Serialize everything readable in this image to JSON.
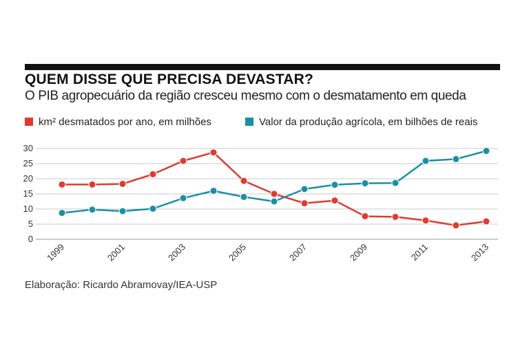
{
  "header": {
    "title": "QUEM DISSE QUE PRECISA DEVASTAR?",
    "subtitle": "O PIB agropecuário da região cresceu mesmo com o desmatamento em queda"
  },
  "legend": [
    {
      "label": "km² desmatados por ano, em milhões",
      "color": "#e03a30"
    },
    {
      "label": "Valor da produção agrícola, em bilhões de reais",
      "color": "#1b8fa6"
    }
  ],
  "source": "Elaboração: Ricardo Abramovay/IEA-USP",
  "chart_data": {
    "type": "line",
    "x": [
      1999,
      2000,
      2001,
      2002,
      2003,
      2004,
      2005,
      2006,
      2007,
      2008,
      2009,
      2010,
      2011,
      2012,
      2013
    ],
    "x_tick_labels": [
      "1999",
      "2001",
      "2003",
      "2005",
      "2007",
      "2009",
      "2011",
      "2013"
    ],
    "ylim": [
      0,
      30
    ],
    "y_ticks": [
      0,
      5,
      10,
      15,
      20,
      25,
      30
    ],
    "grid": true,
    "legend_position": "top",
    "series": [
      {
        "name": "km² desmatados por ano, em milhões",
        "color": "#e03a30",
        "values": [
          18.1,
          18.1,
          18.3,
          21.5,
          25.9,
          28.7,
          19.3,
          15.0,
          11.9,
          12.8,
          7.6,
          7.4,
          6.2,
          4.6,
          5.9
        ]
      },
      {
        "name": "Valor da produção agrícola, em bilhões de reais",
        "color": "#1b8fa6",
        "values": [
          8.7,
          9.8,
          9.3,
          10.1,
          13.6,
          16.0,
          14.0,
          12.5,
          16.6,
          18.0,
          18.5,
          18.6,
          25.9,
          26.5,
          29.2
        ]
      }
    ]
  }
}
